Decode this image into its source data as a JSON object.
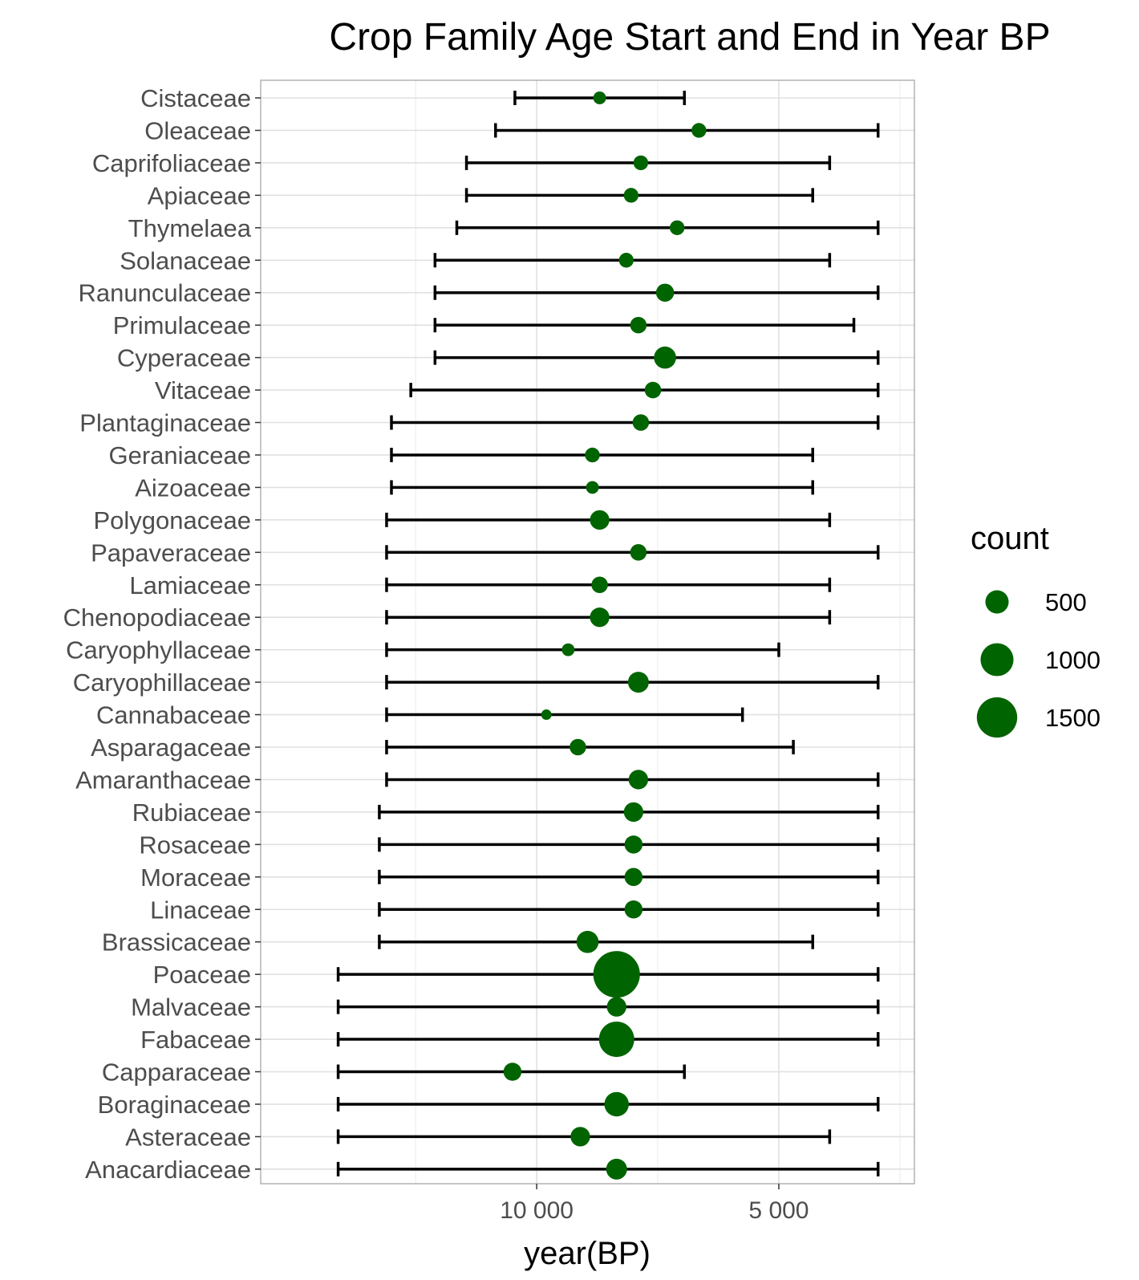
{
  "chart_data": {
    "type": "scatter",
    "title": "Crop Family Age Start and End in Year BP",
    "xlabel": "year(BP)",
    "ylabel": "",
    "x_reversed": true,
    "xlim": [
      15700,
      2200
    ],
    "x_ticks": [
      10000,
      5000
    ],
    "x_tick_labels": [
      "10 000",
      "5 000"
    ],
    "grid": true,
    "point_color": "#006400",
    "bar_color": "#000000",
    "legend": {
      "title": "count",
      "position": "right",
      "entries": [
        {
          "label": "500",
          "value": 500
        },
        {
          "label": "1000",
          "value": 1000
        },
        {
          "label": "1500",
          "value": 1500
        }
      ]
    },
    "series": [
      {
        "family": "Cistaceae",
        "start": 10450,
        "end": 6950,
        "mean": 8700,
        "count": 150
      },
      {
        "family": "Oleaceae",
        "start": 10850,
        "end": 2950,
        "mean": 6650,
        "count": 200
      },
      {
        "family": "Caprifoliaceae",
        "start": 11450,
        "end": 3950,
        "mean": 7850,
        "count": 200
      },
      {
        "family": "Apiaceae",
        "start": 11450,
        "end": 4300,
        "mean": 8050,
        "count": 200
      },
      {
        "family": "Thymelaea",
        "start": 11650,
        "end": 2950,
        "mean": 7100,
        "count": 200
      },
      {
        "family": "Solanaceae",
        "start": 12100,
        "end": 3950,
        "mean": 8150,
        "count": 200
      },
      {
        "family": "Ranunculaceae",
        "start": 12100,
        "end": 2950,
        "mean": 7350,
        "count": 300
      },
      {
        "family": "Primulaceae",
        "start": 12100,
        "end": 3450,
        "mean": 7900,
        "count": 250
      },
      {
        "family": "Cyperaceae",
        "start": 12100,
        "end": 2950,
        "mean": 7350,
        "count": 450
      },
      {
        "family": "Vitaceae",
        "start": 12600,
        "end": 2950,
        "mean": 7600,
        "count": 250
      },
      {
        "family": "Plantaginaceae",
        "start": 13000,
        "end": 2950,
        "mean": 7850,
        "count": 250
      },
      {
        "family": "Geraniaceae",
        "start": 13000,
        "end": 4300,
        "mean": 8850,
        "count": 200
      },
      {
        "family": "Aizoaceae",
        "start": 13000,
        "end": 4300,
        "mean": 8850,
        "count": 150
      },
      {
        "family": "Polygonaceae",
        "start": 13100,
        "end": 3950,
        "mean": 8700,
        "count": 350
      },
      {
        "family": "Papaveraceae",
        "start": 13100,
        "end": 2950,
        "mean": 7900,
        "count": 250
      },
      {
        "family": "Lamiaceae",
        "start": 13100,
        "end": 3950,
        "mean": 8700,
        "count": 250
      },
      {
        "family": "Chenopodiaceae",
        "start": 13100,
        "end": 3950,
        "mean": 8700,
        "count": 350
      },
      {
        "family": "Caryophyllaceae",
        "start": 13100,
        "end": 5000,
        "mean": 9350,
        "count": 150
      },
      {
        "family": "Caryophillaceae",
        "start": 13100,
        "end": 2950,
        "mean": 7900,
        "count": 400
      },
      {
        "family": "Cannabaceae",
        "start": 13100,
        "end": 5750,
        "mean": 9800,
        "count": 100
      },
      {
        "family": "Asparagaceae",
        "start": 13100,
        "end": 4700,
        "mean": 9150,
        "count": 250
      },
      {
        "family": "Amaranthaceae",
        "start": 13100,
        "end": 2950,
        "mean": 7900,
        "count": 350
      },
      {
        "family": "Rubiaceae",
        "start": 13250,
        "end": 2950,
        "mean": 8000,
        "count": 350
      },
      {
        "family": "Rosaceae",
        "start": 13250,
        "end": 2950,
        "mean": 8000,
        "count": 300
      },
      {
        "family": "Moraceae",
        "start": 13250,
        "end": 2950,
        "mean": 8000,
        "count": 300
      },
      {
        "family": "Linaceae",
        "start": 13250,
        "end": 2950,
        "mean": 8000,
        "count": 300
      },
      {
        "family": "Brassicaceae",
        "start": 13250,
        "end": 4300,
        "mean": 8950,
        "count": 450
      },
      {
        "family": "Poaceae",
        "start": 14100,
        "end": 2950,
        "mean": 8350,
        "count": 2000
      },
      {
        "family": "Malvaceae",
        "start": 14100,
        "end": 2950,
        "mean": 8350,
        "count": 350
      },
      {
        "family": "Fabaceae",
        "start": 14100,
        "end": 2950,
        "mean": 8350,
        "count": 1150
      },
      {
        "family": "Capparaceae",
        "start": 14100,
        "end": 6950,
        "mean": 10500,
        "count": 300
      },
      {
        "family": "Boraginaceae",
        "start": 14100,
        "end": 2950,
        "mean": 8350,
        "count": 550
      },
      {
        "family": "Asteraceae",
        "start": 14100,
        "end": 3950,
        "mean": 9100,
        "count": 350
      },
      {
        "family": "Anacardiaceae",
        "start": 14100,
        "end": 2950,
        "mean": 8350,
        "count": 400
      }
    ]
  }
}
